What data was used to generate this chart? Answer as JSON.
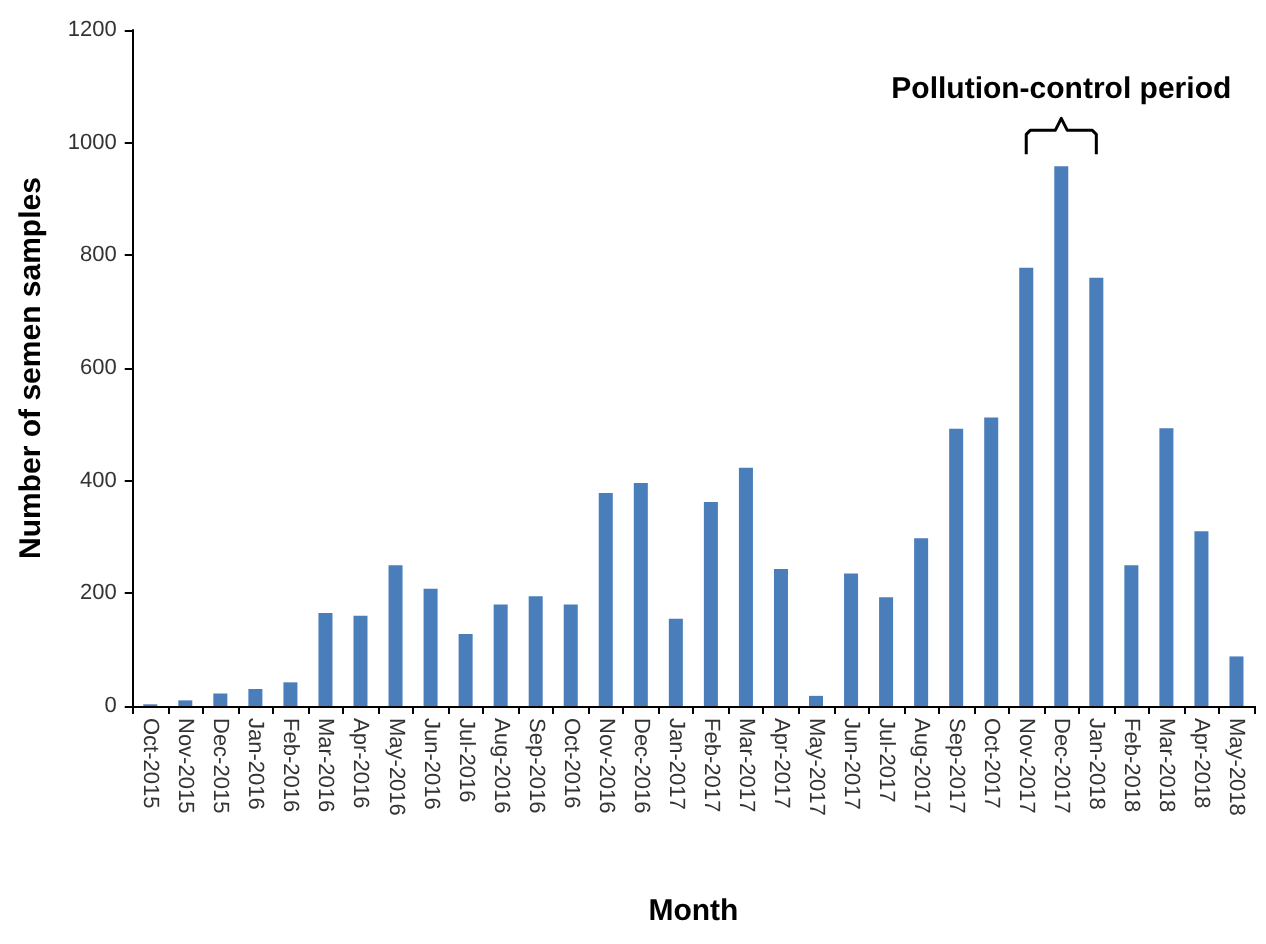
{
  "chart_data": {
    "type": "bar",
    "xlabel": "Month",
    "ylabel": "Number of semen samples",
    "categories": [
      "Oct-2015",
      "Nov-2015",
      "Dec-2015",
      "Jan-2016",
      "Feb-2016",
      "Mar-2016",
      "Apr-2016",
      "May-2016",
      "Jun-2016",
      "Jul-2016",
      "Aug-2016",
      "Sep-2016",
      "Oct-2016",
      "Nov-2016",
      "Dec-2016",
      "Jan-2017",
      "Feb-2017",
      "Mar-2017",
      "Apr-2017",
      "May-2017",
      "Jun-2017",
      "Jul-2017",
      "Aug-2017",
      "Sep-2017",
      "Oct-2017",
      "Nov-2017",
      "Dec-2017",
      "Jan-2018",
      "Feb-2018",
      "Mar-2018",
      "Apr-2018",
      "May-2018"
    ],
    "values": [
      3,
      10,
      22,
      30,
      42,
      165,
      160,
      250,
      208,
      128,
      180,
      195,
      180,
      378,
      396,
      155,
      362,
      423,
      243,
      18,
      235,
      193,
      298,
      492,
      512,
      778,
      958,
      760,
      250,
      493,
      310,
      88
    ],
    "color": "#4a7ebb",
    "ylim": [
      0,
      1200
    ],
    "yticks": [
      0,
      200,
      400,
      600,
      800,
      1000,
      1200
    ],
    "grid": false,
    "annotations": [
      "Pollution-control period"
    ]
  }
}
